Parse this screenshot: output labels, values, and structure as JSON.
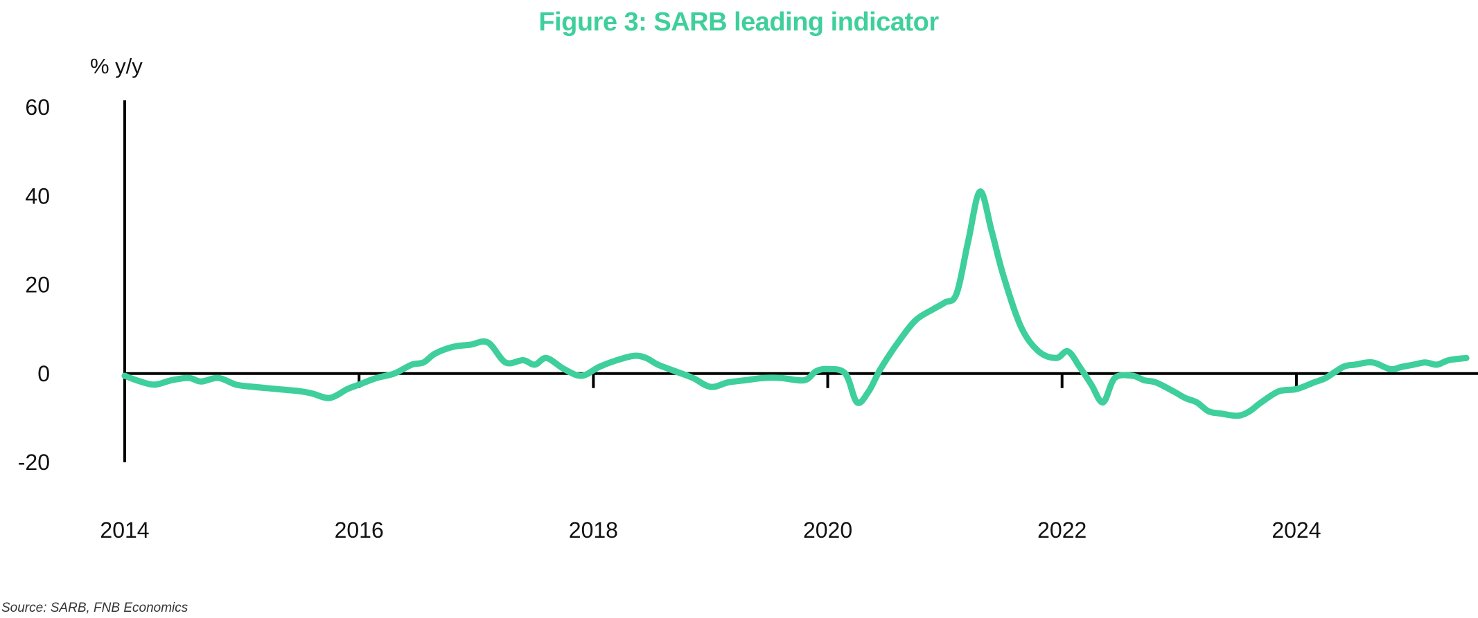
{
  "colors": {
    "series": "#3ecf9c",
    "axis": "#000000"
  },
  "source": "Source: SARB, FNB Economics",
  "chart_data": {
    "type": "line",
    "title": "Figure 3: SARB leading indicator",
    "ylabel": "% y/y",
    "xlabel": "",
    "ylim": [
      -20,
      60
    ],
    "xlim": [
      2014,
      2025.55
    ],
    "yticks": [
      60,
      40,
      20,
      0,
      -20
    ],
    "ytick_labels": [
      "60",
      "40",
      "20",
      "0",
      "-20"
    ],
    "xticks": [
      2014,
      2016,
      2018,
      2020,
      2022,
      2024
    ],
    "xtick_labels": [
      "2014",
      "2016",
      "2018",
      "2020",
      "2022",
      "2024"
    ],
    "grid": false,
    "legend": "none",
    "series": [
      {
        "x": [
          2014.0,
          2014.1,
          2014.25,
          2014.4,
          2014.55,
          2014.65,
          2014.8,
          2014.95,
          2015.1,
          2015.3,
          2015.5,
          2015.6,
          2015.75,
          2015.9,
          2016.0,
          2016.15,
          2016.3,
          2016.45,
          2016.55,
          2016.65,
          2016.8,
          2016.95,
          2017.1,
          2017.25,
          2017.4,
          2017.5,
          2017.6,
          2017.75,
          2017.9,
          2018.05,
          2018.2,
          2018.35,
          2018.45,
          2018.55,
          2018.7,
          2018.85,
          2019.0,
          2019.15,
          2019.3,
          2019.45,
          2019.6,
          2019.8,
          2019.9,
          2020.0,
          2020.15,
          2020.25,
          2020.35,
          2020.45,
          2020.6,
          2020.75,
          2020.9,
          2021.0,
          2021.1,
          2021.2,
          2021.3,
          2021.4,
          2021.5,
          2021.65,
          2021.8,
          2021.95,
          2022.05,
          2022.15,
          2022.25,
          2022.35,
          2022.45,
          2022.6,
          2022.7,
          2022.8,
          2022.95,
          2023.05,
          2023.15,
          2023.25,
          2023.35,
          2023.5,
          2023.6,
          2023.7,
          2023.85,
          2024.0,
          2024.15,
          2024.25,
          2024.4,
          2024.5,
          2024.65,
          2024.8,
          2024.9,
          2025.0,
          2025.1,
          2025.2,
          2025.3,
          2025.45
        ],
        "y": [
          -0.5,
          -1.5,
          -2.5,
          -1.5,
          -1.0,
          -1.8,
          -1.0,
          -2.5,
          -3.0,
          -3.5,
          -4.0,
          -4.5,
          -5.5,
          -3.5,
          -2.5,
          -1.0,
          0.0,
          2.0,
          2.5,
          4.5,
          6.0,
          6.5,
          7.0,
          2.5,
          3.0,
          2.0,
          3.5,
          1.0,
          -0.5,
          1.5,
          3.0,
          4.0,
          3.5,
          2.0,
          0.5,
          -1.0,
          -3.0,
          -2.0,
          -1.5,
          -1.0,
          -1.0,
          -1.5,
          0.5,
          1.0,
          0.0,
          -6.5,
          -4.0,
          1.0,
          7.0,
          12.0,
          14.5,
          16.0,
          18.0,
          30.0,
          41.0,
          32.0,
          22.0,
          10.5,
          5.0,
          3.5,
          5.0,
          1.5,
          -2.5,
          -6.5,
          -1.0,
          -0.5,
          -1.5,
          -2.0,
          -4.0,
          -5.5,
          -6.5,
          -8.5,
          -9.0,
          -9.5,
          -8.5,
          -6.5,
          -4.0,
          -3.5,
          -2.0,
          -1.0,
          1.5,
          2.0,
          2.5,
          1.0,
          1.5,
          2.0,
          2.5,
          2.0,
          3.0,
          3.5
        ]
      }
    ]
  }
}
